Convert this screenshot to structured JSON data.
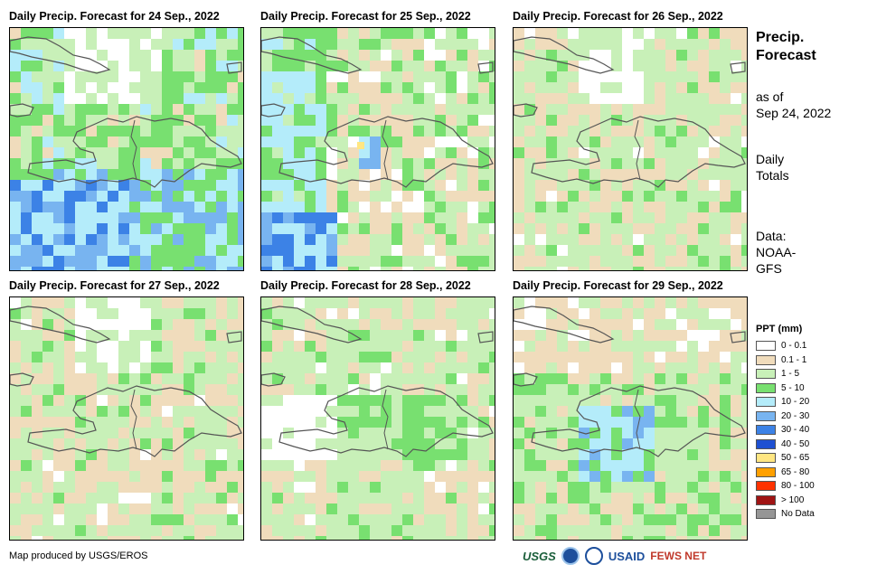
{
  "panels": [
    {
      "title": "Daily Precip. Forecast for 24 Sep., 2022",
      "seed": 11,
      "profile": "wet-southwest"
    },
    {
      "title": "Daily Precip. Forecast for 25 Sep., 2022",
      "seed": 23,
      "profile": "wet-west"
    },
    {
      "title": "Daily Precip. Forecast for 26 Sep., 2022",
      "seed": 37,
      "profile": "dry"
    },
    {
      "title": "Daily Precip. Forecast for 27 Sep., 2022",
      "seed": 41,
      "profile": "dry"
    },
    {
      "title": "Daily Precip. Forecast for 28 Sep., 2022",
      "seed": 53,
      "profile": "dry-green"
    },
    {
      "title": "Daily Precip. Forecast for 29 Sep., 2022",
      "seed": 67,
      "profile": "wet-center"
    }
  ],
  "sidebar": {
    "title_line1": "Precip.",
    "title_line2": "Forecast",
    "asof_line1": "as of",
    "asof_line2": "Sep 24, 2022",
    "totals_line1": "Daily",
    "totals_line2": "Totals",
    "data_line1": "Data:",
    "data_line2": "NOAA-",
    "data_line3": "GFS"
  },
  "legend": {
    "title": "PPT (mm)",
    "items": [
      {
        "label": "0 - 0.1",
        "color": "#ffffff"
      },
      {
        "label": "0.1 - 1",
        "color": "#f0dcbc"
      },
      {
        "label": "1 - 5",
        "color": "#c8f0b8"
      },
      {
        "label": "5 - 10",
        "color": "#78e070"
      },
      {
        "label": "10 - 20",
        "color": "#b4ecfa"
      },
      {
        "label": "20 - 30",
        "color": "#78b4f0"
      },
      {
        "label": "30 - 40",
        "color": "#3c82e6"
      },
      {
        "label": "40 - 50",
        "color": "#1e50d2"
      },
      {
        "label": "50 - 65",
        "color": "#ffe682"
      },
      {
        "label": "65 - 80",
        "color": "#ffa000"
      },
      {
        "label": "80 - 100",
        "color": "#ff3200"
      },
      {
        "label": "> 100",
        "color": "#a01414"
      },
      {
        "label": "No Data",
        "color": "#969696"
      }
    ]
  },
  "credit": "Map produced by USGS/EROS",
  "logos": {
    "usgs": "USGS",
    "usaid": "USAID",
    "fewsnet": "FEWS NET"
  }
}
